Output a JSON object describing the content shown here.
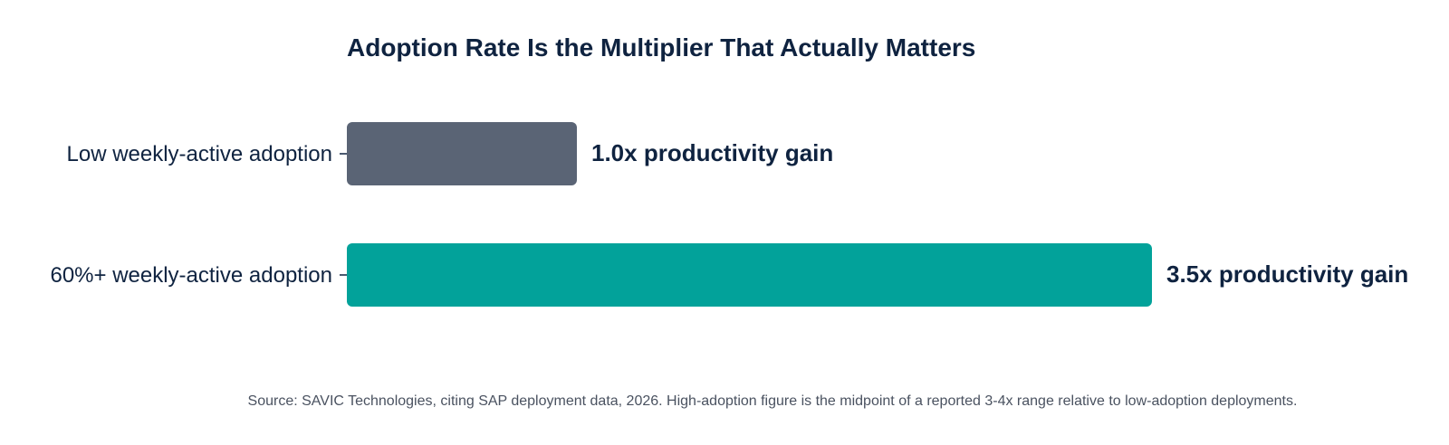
{
  "chart_data": {
    "type": "bar",
    "orientation": "horizontal",
    "title": "Adoption Rate Is the Multiplier That Actually Matters",
    "categories": [
      "Low weekly-active adoption",
      "60%+ weekly-active adoption"
    ],
    "values": [
      1.0,
      3.5
    ],
    "value_labels": [
      "1.0x productivity gain",
      "3.5x productivity gain"
    ],
    "colors": [
      "#5a6475",
      "#02a29a"
    ],
    "xlabel": "",
    "ylabel": "",
    "grid": false,
    "legend": "none",
    "source": "Source: SAVIC Technologies, citing SAP deployment data, 2026. High-adoption figure is the midpoint of a reported 3-4x range relative to low-adoption deployments."
  }
}
